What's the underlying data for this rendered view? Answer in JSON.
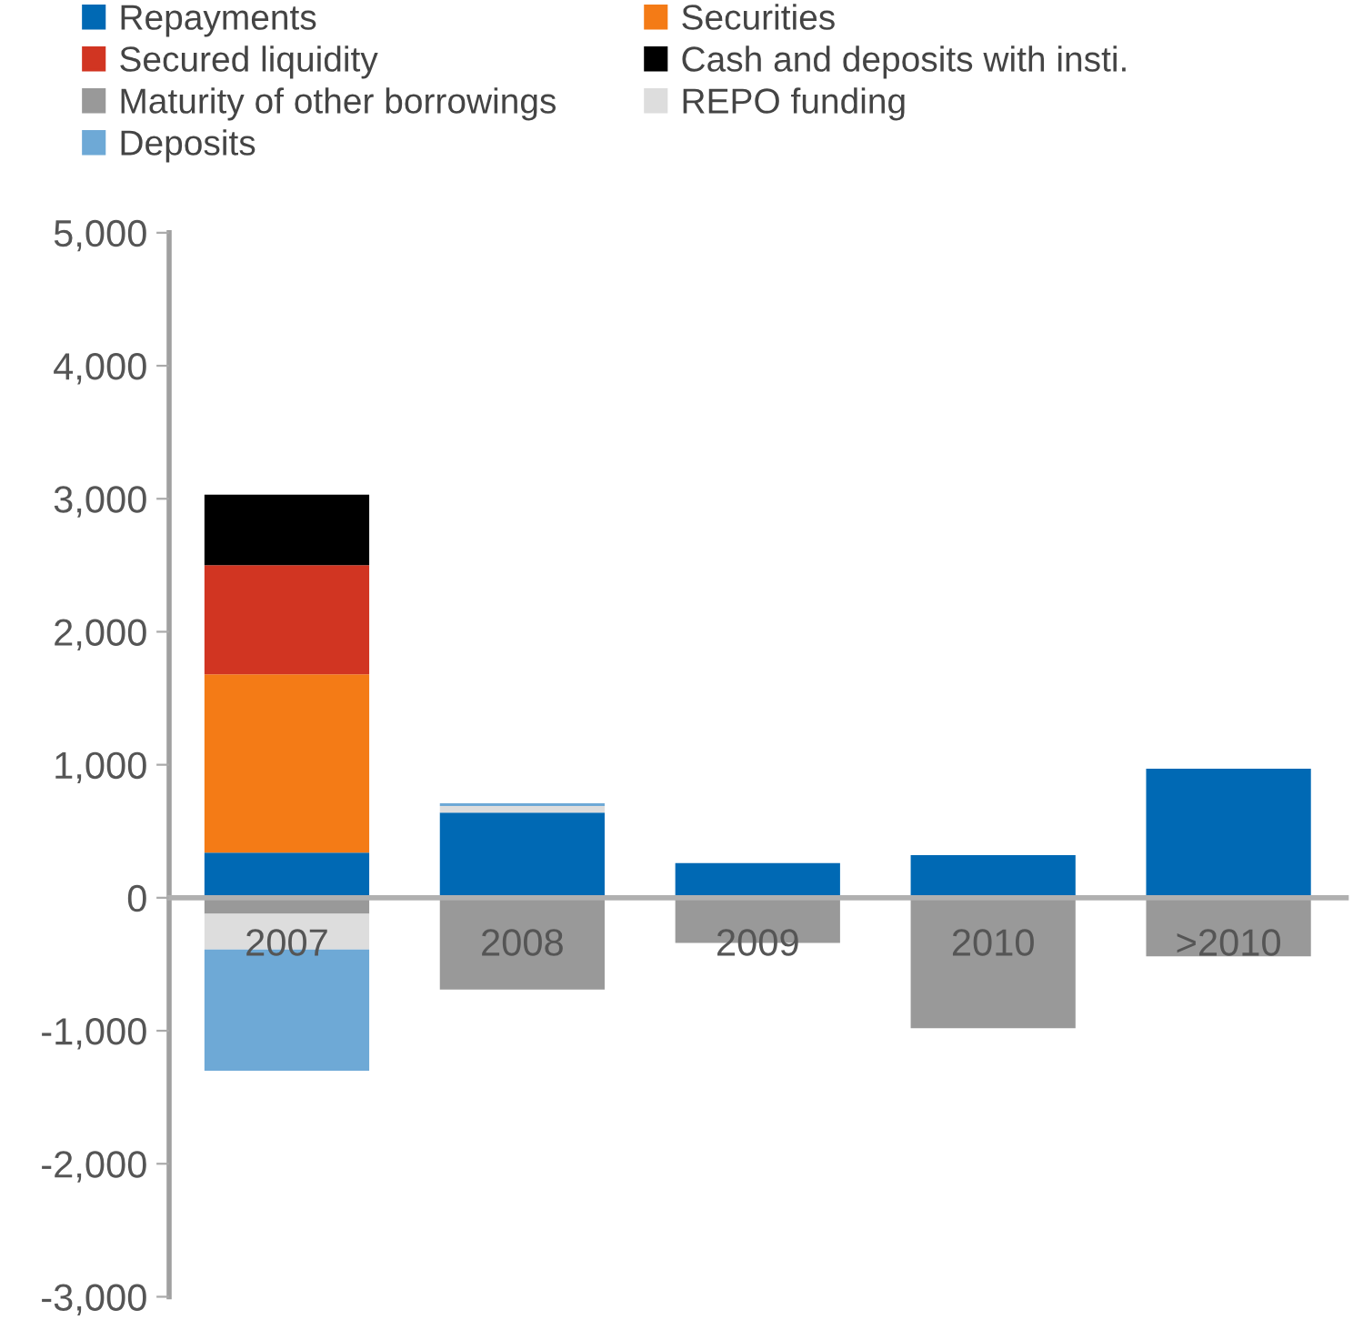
{
  "chart_data": {
    "type": "bar",
    "stacked": true,
    "categories": [
      "2007",
      "2008",
      "2009",
      "2010",
      ">2010"
    ],
    "series": [
      {
        "name": "Repayments",
        "color": "#0069b4",
        "values": [
          340,
          640,
          260,
          320,
          970
        ]
      },
      {
        "name": "Securities",
        "color": "#f47b16",
        "values": [
          1340,
          null,
          null,
          null,
          null
        ]
      },
      {
        "name": "Secured liquidity",
        "color": "#d13522",
        "values": [
          820,
          null,
          null,
          null,
          null
        ]
      },
      {
        "name": "Cash and deposits with insti.",
        "color": "#000000",
        "values": [
          530,
          null,
          null,
          null,
          null
        ]
      },
      {
        "name": "Maturity of other borrowings",
        "color": "#999999",
        "values": [
          -120,
          -690,
          -340,
          -980,
          -440
        ]
      },
      {
        "name": "REPO funding",
        "color": "#dddddd",
        "values": [
          -270,
          50,
          null,
          null,
          null
        ]
      },
      {
        "name": "Deposits",
        "color": "#6ea9d6",
        "values": [
          -910,
          20,
          null,
          null,
          null
        ]
      }
    ],
    "ylim": [
      -3000,
      5000
    ],
    "yticks": [
      {
        "value": -3000,
        "label": "-3,000"
      },
      {
        "value": -2000,
        "label": "-2,000"
      },
      {
        "value": -1000,
        "label": "-1,000"
      },
      {
        "value": 0,
        "label": "0"
      },
      {
        "value": 1000,
        "label": "1,000"
      },
      {
        "value": 2000,
        "label": "2,000"
      },
      {
        "value": 3000,
        "label": "3,000"
      },
      {
        "value": 4000,
        "label": "4,000"
      },
      {
        "value": 5000,
        "label": "5,000"
      }
    ],
    "grid": false,
    "legend": "top"
  }
}
